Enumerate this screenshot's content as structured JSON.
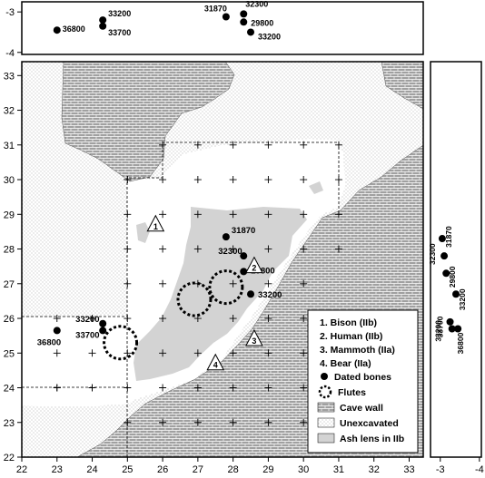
{
  "top_panel": {
    "y_ticks": [
      "-3",
      "-4"
    ],
    "points": [
      {
        "label": "36800",
        "x": 23.0,
        "z": -3.45
      },
      {
        "label": "33200",
        "x": 24.3,
        "z": -3.2
      },
      {
        "label": "33700",
        "x": 24.3,
        "z": -3.35
      },
      {
        "label": "31870",
        "x": 27.8,
        "z": -3.12
      },
      {
        "label": "32300",
        "x": 28.3,
        "z": -3.05
      },
      {
        "label": "29800",
        "x": 28.3,
        "z": -3.25
      },
      {
        "label": "33200",
        "x": 28.5,
        "z": -3.5
      }
    ]
  },
  "side_panel": {
    "x_ticks": [
      "-3",
      "-4"
    ],
    "points": [
      {
        "label": "32300",
        "y": 27.8,
        "z": -3.1
      },
      {
        "label": "31870",
        "y": 28.3,
        "z": -3.05
      },
      {
        "label": "29800",
        "y": 27.3,
        "z": -3.15
      },
      {
        "label": "33200",
        "y": 26.7,
        "z": -3.4
      },
      {
        "label": "33200",
        "y": 25.9,
        "z": -3.25
      },
      {
        "label": "33700",
        "y": 25.7,
        "z": -3.3
      },
      {
        "label": "36800",
        "y": 25.7,
        "z": -3.45
      }
    ]
  },
  "main_map": {
    "x_ticks": [
      "22",
      "23",
      "24",
      "25",
      "26",
      "27",
      "28",
      "29",
      "30",
      "31",
      "32",
      "33"
    ],
    "y_ticks": [
      "22",
      "23",
      "24",
      "25",
      "26",
      "27",
      "28",
      "29",
      "30",
      "31",
      "32",
      "33"
    ],
    "bones": [
      {
        "label": "31870",
        "x": 27.8,
        "y": 28.35
      },
      {
        "label": "32300",
        "x": 28.3,
        "y": 27.8
      },
      {
        "label": "29800",
        "x": 28.3,
        "y": 27.35
      },
      {
        "label": "33200",
        "x": 28.5,
        "y": 26.7
      },
      {
        "label": "33200",
        "x": 24.3,
        "y": 25.85
      },
      {
        "label": "33700",
        "x": 24.3,
        "y": 25.65
      },
      {
        "label": "36800",
        "x": 23.0,
        "y": 25.65
      }
    ],
    "markers": [
      {
        "number": "1",
        "x": 25.8,
        "y": 28.7
      },
      {
        "number": "2",
        "x": 28.6,
        "y": 27.5
      },
      {
        "number": "3",
        "x": 28.6,
        "y": 25.4
      },
      {
        "number": "4",
        "x": 27.5,
        "y": 24.7
      }
    ],
    "flutes": [
      {
        "x": 24.8,
        "y": 25.3
      },
      {
        "x": 26.9,
        "y": 26.55
      },
      {
        "x": 27.8,
        "y": 26.9
      }
    ]
  },
  "legend": {
    "items": [
      "1. Bison (IIb)",
      "2. Human (IIb)",
      "3. Mammoth (IIa)",
      "4. Bear (IIa)",
      "Dated bones",
      "Flutes",
      "Cave wall",
      "Unexcavated",
      "Ash lens in IIb"
    ]
  },
  "colors": {
    "cave_wall_fill": "#9a9a9a",
    "unexcavated_fill": "#ebebeb",
    "ash_lens": "#d3d3d3",
    "points": "#000000"
  }
}
